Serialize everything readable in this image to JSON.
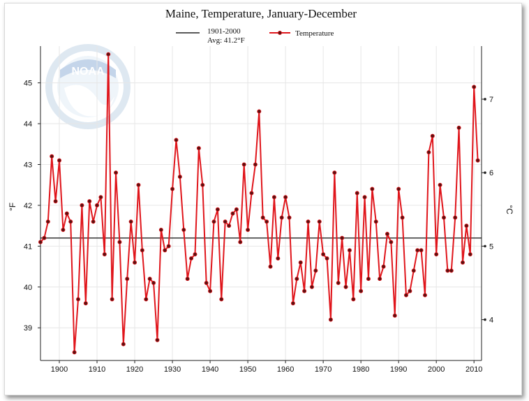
{
  "chart_data": {
    "type": "line",
    "title": "Maine, Temperature, January-December",
    "ylabel_left": "°F",
    "ylabel_right": "°C",
    "xlim": [
      1895,
      2012
    ],
    "ylim_f": [
      38.2,
      45.9
    ],
    "x_ticks": [
      1900,
      1910,
      1920,
      1930,
      1940,
      1950,
      1960,
      1970,
      1980,
      1990,
      2000,
      2010
    ],
    "y_ticks_f": [
      39,
      40,
      41,
      42,
      43,
      44,
      45
    ],
    "y_ticks_c": [
      4,
      5,
      6,
      7
    ],
    "grid": true,
    "legend_position": "top",
    "legend": [
      {
        "label": "1901-2000",
        "sublabel": "Avg: 41.2°F",
        "color": "#111111",
        "style": "line"
      },
      {
        "label": "Temperature",
        "color": "#e0151b",
        "style": "line-marker"
      }
    ],
    "baseline": {
      "name": "1901-2000",
      "value": 41.2,
      "unit": "°F"
    },
    "series": [
      {
        "name": "Temperature",
        "color": "#e0151b",
        "x": [
          1895,
          1896,
          1897,
          1898,
          1899,
          1900,
          1901,
          1902,
          1903,
          1904,
          1905,
          1906,
          1907,
          1908,
          1909,
          1910,
          1911,
          1912,
          1913,
          1914,
          1915,
          1916,
          1917,
          1918,
          1919,
          1920,
          1921,
          1922,
          1923,
          1924,
          1925,
          1926,
          1927,
          1928,
          1929,
          1930,
          1931,
          1932,
          1933,
          1934,
          1935,
          1936,
          1937,
          1938,
          1939,
          1940,
          1941,
          1942,
          1943,
          1944,
          1945,
          1946,
          1947,
          1948,
          1949,
          1950,
          1951,
          1952,
          1953,
          1954,
          1955,
          1956,
          1957,
          1958,
          1959,
          1960,
          1961,
          1962,
          1963,
          1964,
          1965,
          1966,
          1967,
          1968,
          1969,
          1970,
          1971,
          1972,
          1973,
          1974,
          1975,
          1976,
          1977,
          1978,
          1979,
          1980,
          1981,
          1982,
          1983,
          1984,
          1985,
          1986,
          1987,
          1988,
          1989,
          1990,
          1991,
          1992,
          1993,
          1994,
          1995,
          1996,
          1997,
          1998,
          1999,
          2000,
          2001,
          2002,
          2003,
          2004,
          2005,
          2006,
          2007,
          2008,
          2009,
          2010,
          2011
        ],
        "y": [
          41.1,
          41.2,
          41.6,
          43.2,
          42.1,
          43.1,
          41.4,
          41.8,
          41.6,
          38.4,
          39.7,
          42.0,
          39.6,
          42.1,
          41.6,
          42.0,
          42.2,
          40.8,
          45.7,
          39.7,
          42.8,
          41.1,
          38.6,
          40.2,
          41.6,
          40.6,
          42.5,
          40.9,
          39.7,
          40.2,
          40.1,
          38.7,
          41.4,
          40.9,
          41.0,
          42.4,
          43.6,
          42.7,
          41.4,
          40.2,
          40.7,
          40.8,
          43.4,
          42.5,
          40.1,
          39.9,
          41.6,
          41.9,
          39.7,
          41.6,
          41.5,
          41.8,
          41.9,
          41.1,
          43.0,
          41.4,
          42.3,
          43.0,
          44.3,
          41.7,
          41.6,
          40.5,
          42.2,
          40.7,
          41.7,
          42.2,
          41.7,
          39.6,
          40.2,
          40.6,
          39.9,
          41.6,
          40.0,
          40.4,
          41.6,
          40.8,
          40.7,
          39.2,
          42.8,
          40.1,
          41.2,
          40.0,
          40.9,
          39.7,
          42.3,
          39.9,
          42.2,
          40.2,
          42.4,
          41.6,
          40.2,
          40.5,
          41.3,
          41.1,
          39.3,
          42.4,
          41.7,
          39.8,
          39.9,
          40.4,
          40.9,
          40.9,
          39.8,
          43.3,
          43.7,
          40.8,
          42.5,
          41.7,
          40.4,
          40.4,
          41.7,
          43.9,
          40.6,
          41.5,
          40.8,
          44.9,
          43.1
        ]
      }
    ]
  }
}
